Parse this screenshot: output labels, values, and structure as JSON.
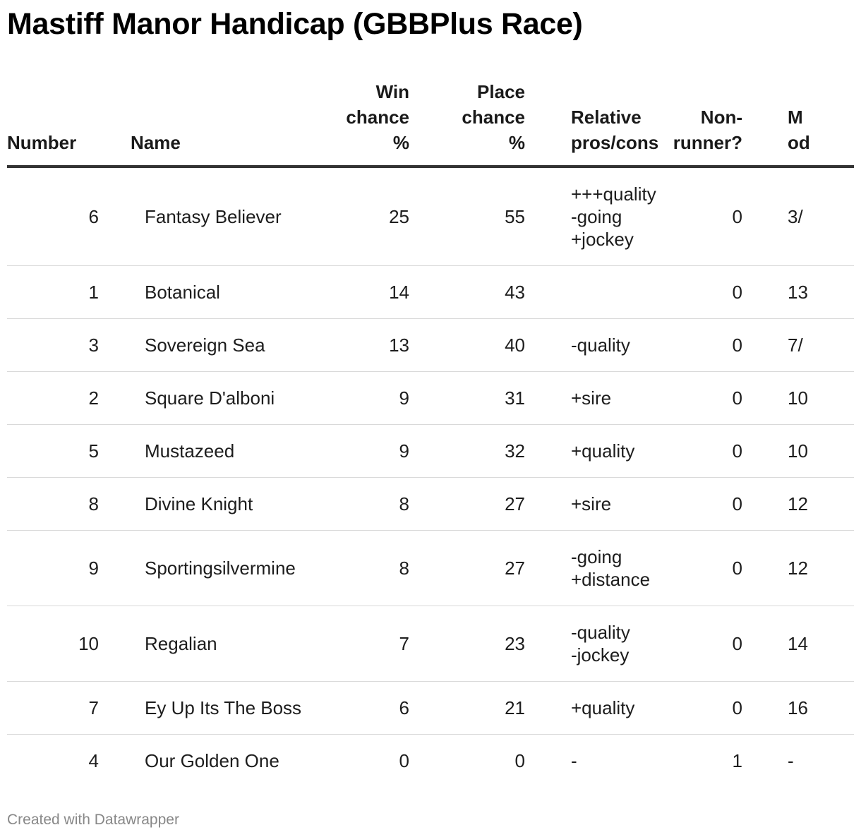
{
  "title": "Mastiff Manor Handicap (GBBPlus Race)",
  "footer": "Created with Datawrapper",
  "chart_data": {
    "type": "table",
    "title": "Mastiff Manor Handicap (GBBPlus Race)",
    "columns": [
      "Number",
      "Name",
      "Win\nchance\n%",
      "Place\nchance\n%",
      "Relative\npros/cons",
      "Non-\nrunner?",
      "M\nod"
    ],
    "rows": [
      {
        "number": "6",
        "name": "Fantasy Believer",
        "win": "25",
        "place": "55",
        "relative": "+++quality\n-going\n+jockey",
        "nonrunner": "0",
        "odds": "3/"
      },
      {
        "number": "1",
        "name": "Botanical",
        "win": "14",
        "place": "43",
        "relative": "",
        "nonrunner": "0",
        "odds": "13"
      },
      {
        "number": "3",
        "name": "Sovereign Sea",
        "win": "13",
        "place": "40",
        "relative": "-quality",
        "nonrunner": "0",
        "odds": "7/"
      },
      {
        "number": "2",
        "name": "Square D'alboni",
        "win": "9",
        "place": "31",
        "relative": "+sire",
        "nonrunner": "0",
        "odds": "10"
      },
      {
        "number": "5",
        "name": "Mustazeed",
        "win": "9",
        "place": "32",
        "relative": "+quality",
        "nonrunner": "0",
        "odds": "10"
      },
      {
        "number": "8",
        "name": "Divine Knight",
        "win": "8",
        "place": "27",
        "relative": "+sire",
        "nonrunner": "0",
        "odds": "12"
      },
      {
        "number": "9",
        "name": "Sportingsilvermine",
        "win": "8",
        "place": "27",
        "relative": "-going\n+distance",
        "nonrunner": "0",
        "odds": "12"
      },
      {
        "number": "10",
        "name": "Regalian",
        "win": "7",
        "place": "23",
        "relative": "-quality\n-jockey",
        "nonrunner": "0",
        "odds": "14"
      },
      {
        "number": "7",
        "name": "Ey Up Its The Boss",
        "win": "6",
        "place": "21",
        "relative": "+quality",
        "nonrunner": "0",
        "odds": "16"
      },
      {
        "number": "4",
        "name": "Our Golden One",
        "win": "0",
        "place": "0",
        "relative": "-",
        "nonrunner": "1",
        "odds": "-"
      }
    ]
  }
}
